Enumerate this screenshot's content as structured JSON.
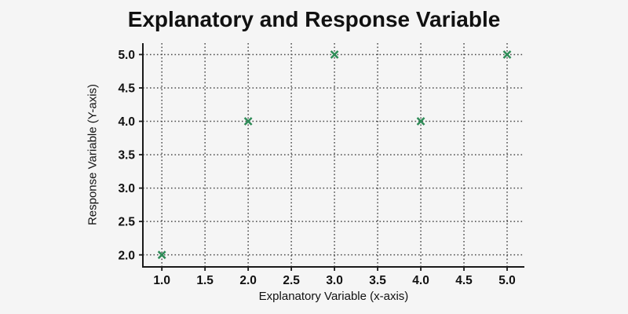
{
  "chart_data": {
    "type": "scatter",
    "title": "Explanatory and Response Variable",
    "xlabel": "Explanatory Variable (x-axis)",
    "ylabel": "Response Variable (Y-axis)",
    "points": [
      [
        1.0,
        2.0
      ],
      [
        2.0,
        4.0
      ],
      [
        3.0,
        5.0
      ],
      [
        4.0,
        4.0
      ],
      [
        5.0,
        5.0
      ]
    ],
    "x_tick_labels": [
      "1.0",
      "1.5",
      "2.0",
      "2.5",
      "3.0",
      "3.5",
      "4.0",
      "4.5",
      "5.0"
    ],
    "y_tick_labels": [
      "2.0",
      "2.5",
      "3.0",
      "3.5",
      "4.0",
      "4.5",
      "5.0"
    ],
    "xlim": [
      0.78,
      5.2
    ],
    "ylim": [
      1.82,
      5.17
    ],
    "grid": true,
    "grid_style": "dotted",
    "legend": "none",
    "marker": "x",
    "marker_color": "#2e8b57",
    "background_color": "#f5f5f5",
    "axis_color": "#1a1a1a",
    "grid_color": "#4c4c4c"
  }
}
